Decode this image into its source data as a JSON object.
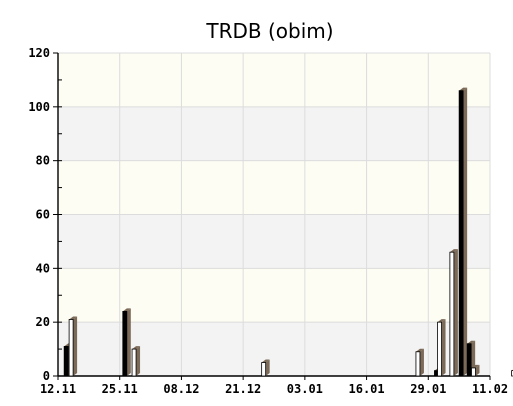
{
  "chart_data": {
    "type": "bar",
    "title": "TRDB (obim)",
    "xlabel": "",
    "ylabel": "",
    "ylim": [
      0,
      120
    ],
    "y_ticks": [
      0,
      20,
      40,
      60,
      80,
      100,
      120
    ],
    "x_tick_labels": [
      "12.11",
      "25.11",
      "08.12",
      "21.12",
      "03.01",
      "16.01",
      "29.01",
      "11.02"
    ],
    "grid": true,
    "legend": "none",
    "colors": {
      "plot_band_light": "#fdfdf3",
      "plot_band_dark": "#f3f3f3",
      "grid": "#dcdcdc",
      "bar_black": "#000000",
      "bar_white": "#ffffff",
      "bar_shadow": "#7b6a58"
    },
    "series": [
      {
        "style": "black",
        "bars": [
          {
            "x_index": 0.1,
            "value": 11
          },
          {
            "x_index": 1.05,
            "value": 24
          },
          {
            "x_index": 6.1,
            "value": 2
          },
          {
            "x_index": 6.5,
            "value": 106
          },
          {
            "x_index": 6.63,
            "value": 12
          }
        ]
      },
      {
        "style": "white",
        "bars": [
          {
            "x_index": 0.18,
            "value": 21
          },
          {
            "x_index": 1.2,
            "value": 10
          },
          {
            "x_index": 3.3,
            "value": 5
          },
          {
            "x_index": 5.8,
            "value": 9
          },
          {
            "x_index": 6.15,
            "value": 20
          },
          {
            "x_index": 6.35,
            "value": 46
          },
          {
            "x_index": 6.7,
            "value": 3
          },
          {
            "x_index": 7.35,
            "value": 2
          }
        ]
      }
    ]
  }
}
